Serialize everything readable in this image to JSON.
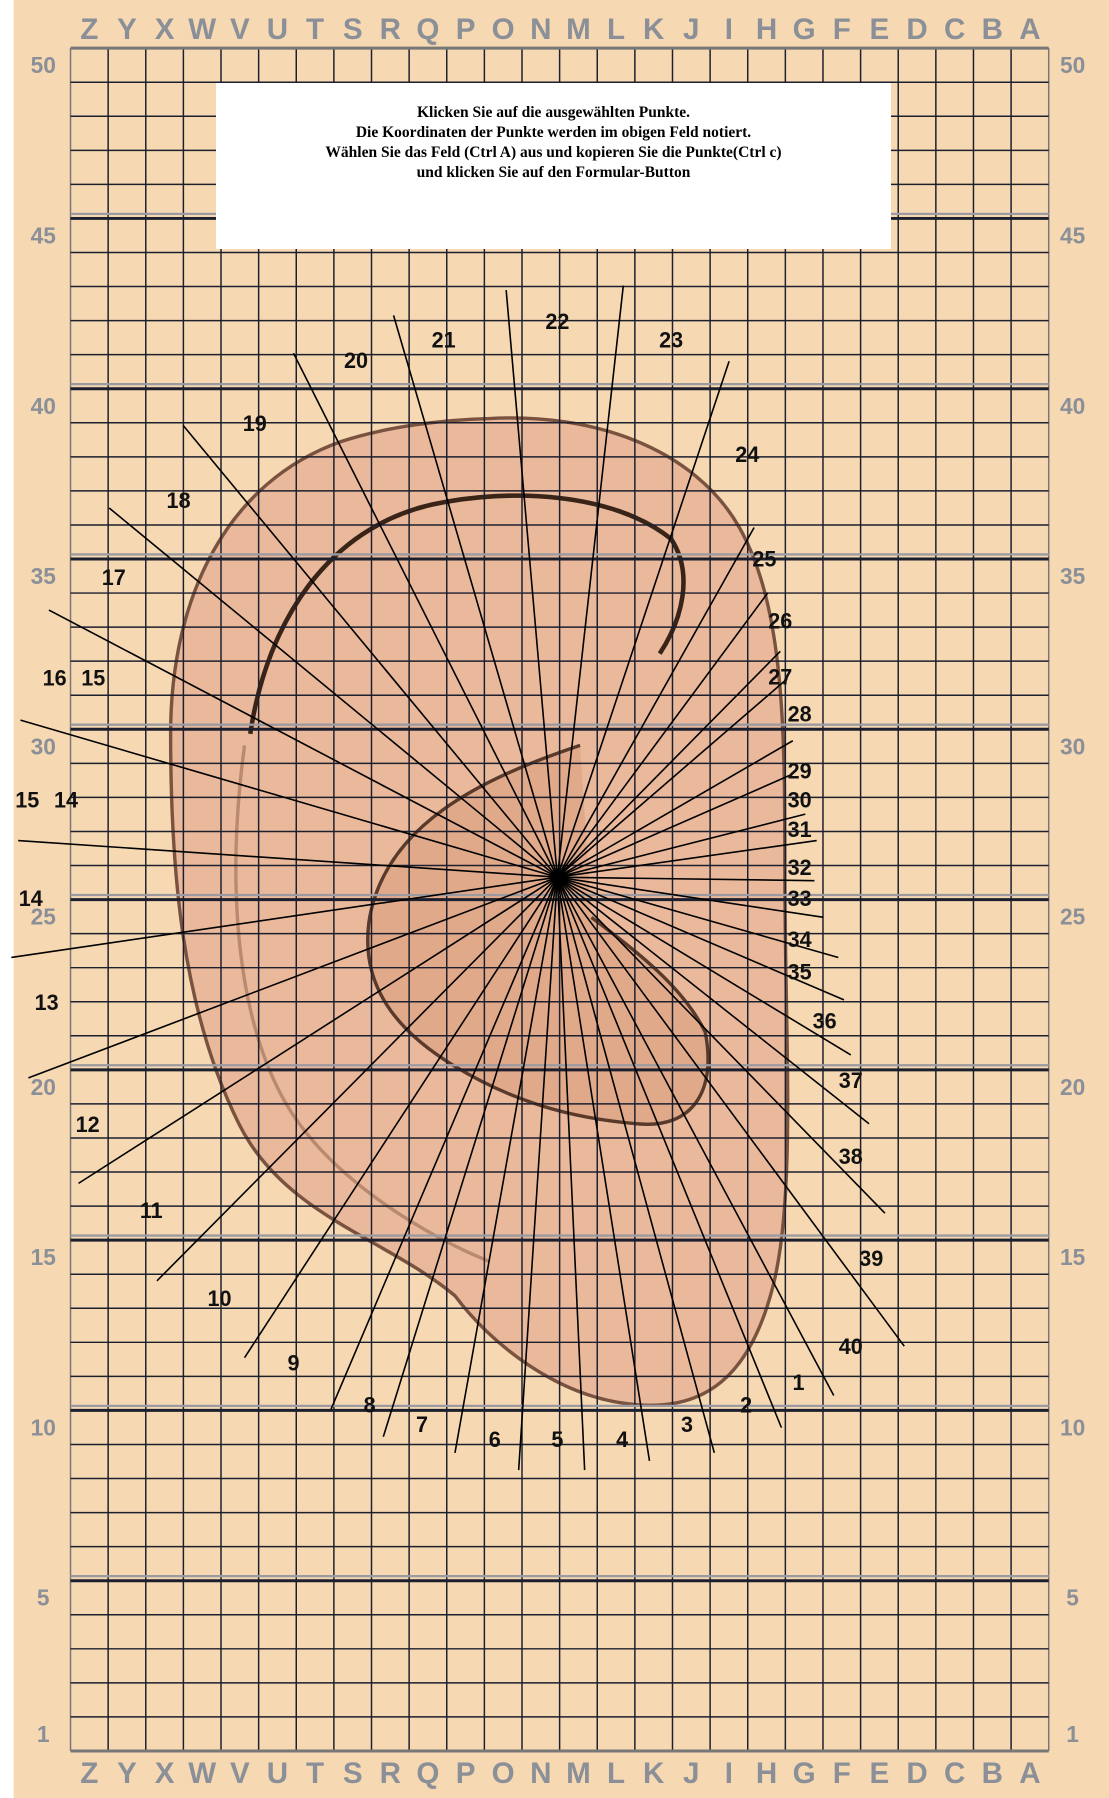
{
  "colors": {
    "background": "#f6d9b2",
    "grid": "#1c1f2e",
    "axis_label": "#8b8f97",
    "ear_fill": "#eab99c",
    "ear_outline": "#5a3a2a",
    "spoke": "#000000"
  },
  "column_letters": [
    "Z",
    "Y",
    "X",
    "W",
    "V",
    "U",
    "T",
    "S",
    "R",
    "Q",
    "P",
    "O",
    "N",
    "M",
    "L",
    "K",
    "J",
    "I",
    "H",
    "G",
    "F",
    "E",
    "D",
    "C",
    "B",
    "A"
  ],
  "row_labels": [
    "50",
    "45",
    "40",
    "35",
    "30",
    "25",
    "20",
    "15",
    "10",
    "5",
    "1"
  ],
  "instructions": [
    "Klicken Sie auf die ausgewählten Punkte.",
    "Die Koordinaten der Punkte werden im obigen Feld notiert.",
    "Wählen Sie das Feld (Ctrl A) aus und kopieren Sie die Punkte(Ctrl c)",
    "und klicken Sie auf den Formular-Button"
  ],
  "point_labels": [
    "1",
    "2",
    "3",
    "4",
    "5",
    "6",
    "7",
    "8",
    "9",
    "10",
    "11",
    "12",
    "13",
    "14",
    "15",
    "14",
    "16",
    "15",
    "17",
    "18",
    "19",
    "20",
    "21",
    "22",
    "23",
    "24",
    "25",
    "26",
    "27",
    "28",
    "29",
    "30",
    "31",
    "32",
    "33",
    "34",
    "35",
    "36",
    "37",
    "38",
    "39",
    "40"
  ]
}
